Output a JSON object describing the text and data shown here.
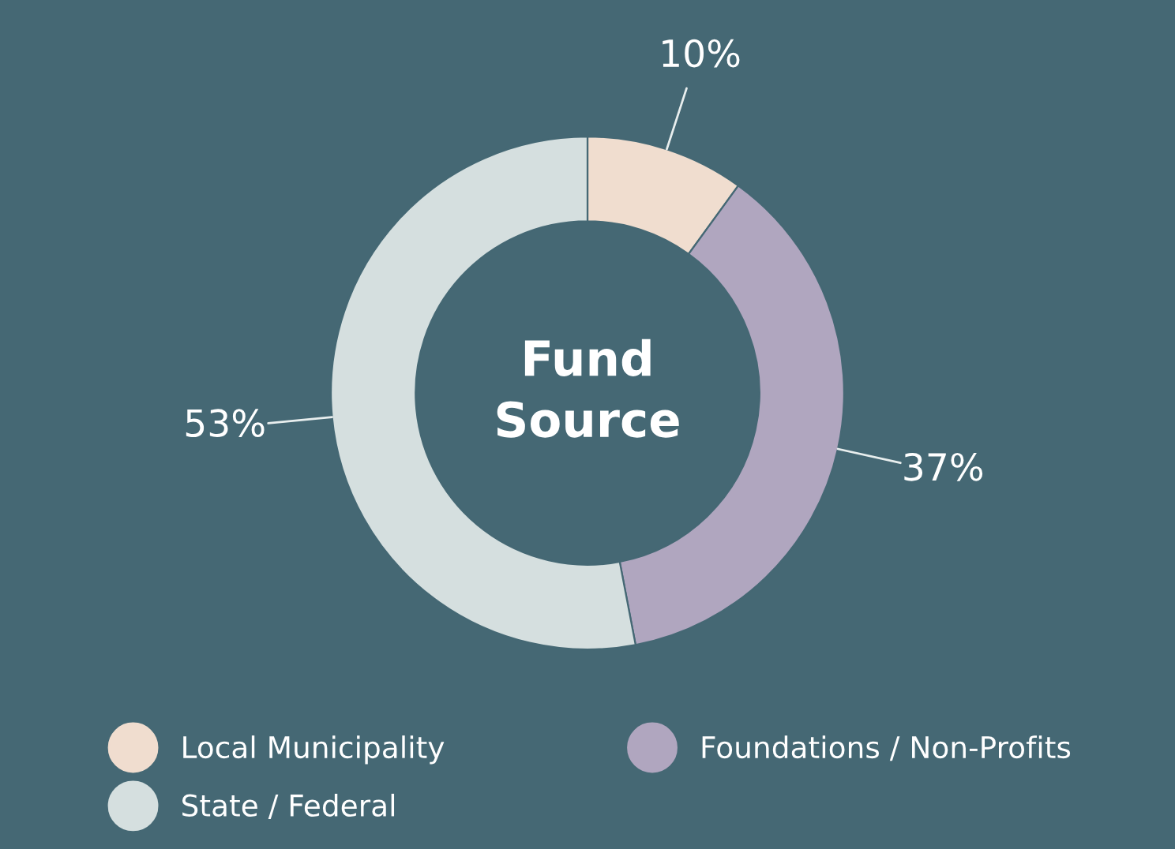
{
  "chart_data": {
    "type": "donut",
    "title": "Fund Source",
    "categories": [
      "Local Municipality",
      "Foundations / Non-Profits",
      "State / Federal"
    ],
    "values": [
      10,
      37,
      53
    ],
    "value_labels": [
      "10%",
      "37%",
      "53%"
    ],
    "colors": [
      "#f0ddcf",
      "#b0a6bf",
      "#d5dfdf"
    ],
    "legend": "bottom"
  }
}
